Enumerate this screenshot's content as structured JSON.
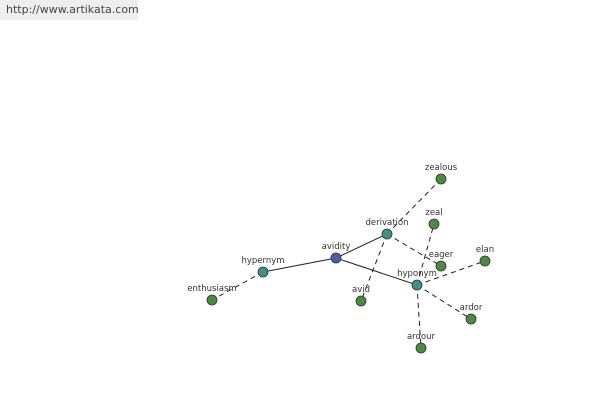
{
  "header": {
    "link": "http://www.artikata.com"
  },
  "nodes": [
    {
      "label": "avidity"
    },
    {
      "label": "derivation"
    },
    {
      "label": "hypernym"
    },
    {
      "label": "hyponym"
    },
    {
      "label": "zealous"
    },
    {
      "label": "zeal"
    },
    {
      "label": "eager"
    },
    {
      "label": "elan"
    },
    {
      "label": "ardor"
    },
    {
      "label": "ardour"
    },
    {
      "label": "avid"
    },
    {
      "label": "enthusiasm"
    }
  ]
}
